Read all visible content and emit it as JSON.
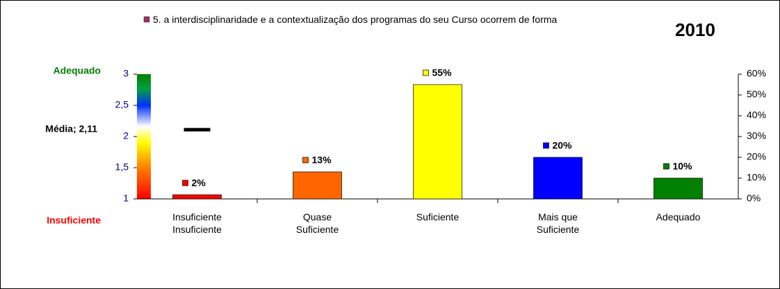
{
  "chart_data": {
    "type": "bar",
    "title": "2010",
    "top_label": "Adequado",
    "bottom_label": "Insuficiente",
    "mean_label": "Média; 2,11",
    "mean": 2.11,
    "categories": [
      "Insuficiente Insuficiente",
      "Quase Suficiente",
      "Suficiente",
      "Mais que Suficiente",
      "Adequado"
    ],
    "series": [
      {
        "name": "5. a interdisciplinaridade e a contextualização dos programas do seu Curso ocorrem de forma",
        "color": "#993366",
        "axis": "y2",
        "colors": [
          "#ff0000",
          "#ff6600",
          "#ffff00",
          "#0000ff",
          "#008000"
        ],
        "values": [
          2,
          13,
          55,
          20,
          10
        ],
        "value_labels": [
          "2%",
          "13%",
          "55%",
          "20%",
          "10%"
        ]
      }
    ],
    "ylim": [
      1,
      3
    ],
    "yticks": [
      1,
      {
        "value": 1.5,
        "label": "1,5"
      },
      2,
      {
        "value": 2.5,
        "label": "2,5"
      },
      3
    ],
    "y2lim": [
      0,
      60
    ],
    "y2ticks": [
      {
        "value": 0,
        "label": "0%"
      },
      {
        "value": 10,
        "label": "10%"
      },
      {
        "value": 20,
        "label": "20%"
      },
      {
        "value": 30,
        "label": "30%"
      },
      {
        "value": 40,
        "label": "40%"
      },
      {
        "value": 50,
        "label": "50%"
      },
      {
        "value": 60,
        "label": "60%"
      }
    ]
  }
}
